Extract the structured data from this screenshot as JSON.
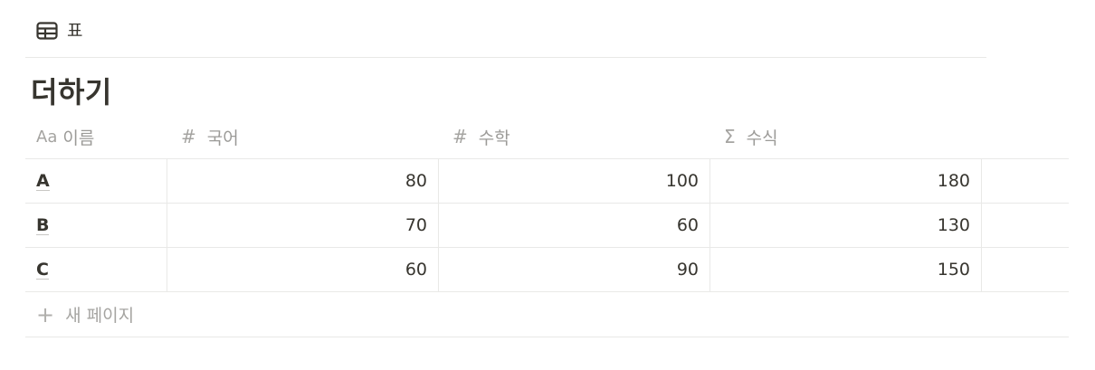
{
  "view": {
    "icon": "table-icon",
    "label": "표"
  },
  "database": {
    "title": "더하기"
  },
  "columns": [
    {
      "icon": "text-property-icon",
      "icon_glyph": "Aa",
      "label": "이름"
    },
    {
      "icon": "number-property-icon",
      "icon_glyph": "#",
      "label": "국어"
    },
    {
      "icon": "number-property-icon",
      "icon_glyph": "#",
      "label": "수학"
    },
    {
      "icon": "formula-property-icon",
      "icon_glyph": "Σ",
      "label": "수식"
    }
  ],
  "rows": [
    {
      "name": "A",
      "korean": "80",
      "math": "100",
      "formula": "180"
    },
    {
      "name": "B",
      "korean": "70",
      "math": "60",
      "formula": "130"
    },
    {
      "name": "C",
      "korean": "60",
      "math": "90",
      "formula": "150"
    }
  ],
  "new_page": {
    "icon": "plus-icon",
    "label": "새 페이지"
  },
  "colors": {
    "text": "#37352f",
    "muted": "#9b9a97",
    "border": "#e9e9e7"
  }
}
